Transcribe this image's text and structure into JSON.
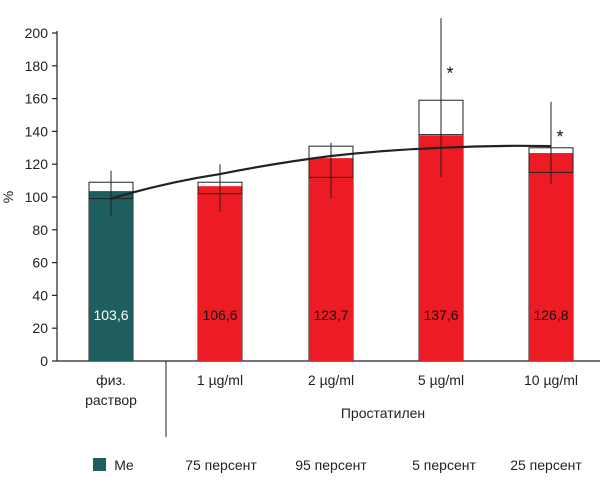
{
  "chart_data": {
    "type": "bar",
    "ylabel": "%",
    "ylim": [
      0,
      200
    ],
    "yticks": [
      0,
      20,
      40,
      60,
      80,
      100,
      120,
      140,
      160,
      180,
      200
    ],
    "categories": [
      "физ.\nраствор",
      "1 µg/ml",
      "2 µg/ml",
      "5 µg/ml",
      "10 µg/ml"
    ],
    "group_label": "Простатилен",
    "series": [
      {
        "name": "Me",
        "values": [
          103.6,
          106.6,
          123.7,
          137.6,
          126.8
        ]
      }
    ],
    "value_labels": [
      "103,6",
      "106,6",
      "123,7",
      "137,6",
      "126,8"
    ],
    "bar_colors": [
      "#1f5e5e",
      "#ed1c24",
      "#ed1c24",
      "#ed1c24",
      "#ed1c24"
    ],
    "percentile_25": [
      99,
      102,
      112,
      138,
      115
    ],
    "percentile_75": [
      109,
      109,
      131,
      159,
      130
    ],
    "percentile_5": [
      88,
      91,
      99,
      112,
      108
    ],
    "percentile_95": [
      116,
      120,
      133,
      209,
      158
    ],
    "significance": [
      "",
      "",
      "",
      "*",
      "*"
    ],
    "trend_line": true,
    "legend": {
      "placement": "bottom",
      "items": [
        "Me",
        "75 персент",
        "95 персент",
        "5 персент",
        "25 персент"
      ],
      "swatch_color": "#1f5e5e"
    }
  }
}
